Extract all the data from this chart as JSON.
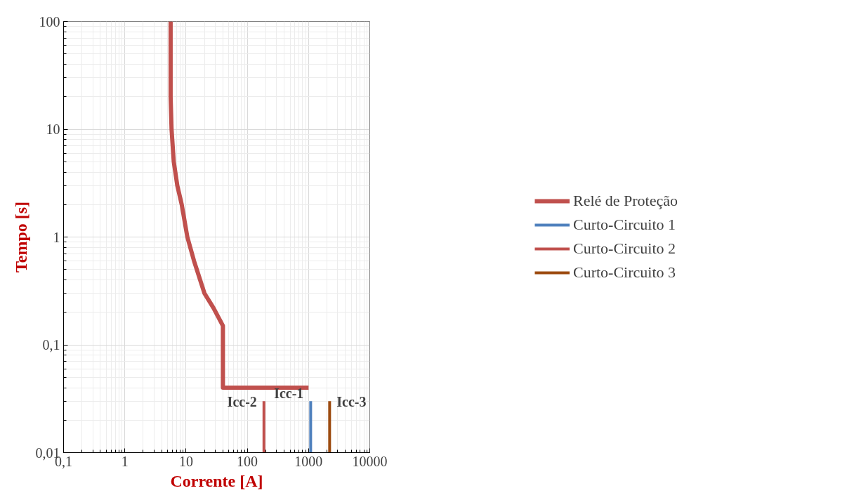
{
  "chart_data": {
    "type": "line",
    "xlabel": "Corrente [A]",
    "ylabel": "Tempo [s]",
    "log": "xy",
    "grid": true,
    "legend": "right",
    "xlim": [
      0.1,
      10000
    ],
    "ylim": [
      0.01,
      100
    ],
    "xticks": [
      {
        "value": 0.1,
        "label": "0,1"
      },
      1,
      10,
      100,
      1000,
      10000
    ],
    "yticks": [
      {
        "value": 0.01,
        "label": "0,01"
      },
      {
        "value": 0.1,
        "label": "0,1"
      },
      1,
      10,
      100
    ],
    "series": [
      {
        "name": "Relé de Proteção",
        "color": "#c0504d",
        "x": [
          5.6,
          5.6,
          5.8,
          6.3,
          7.2,
          8.5,
          10.5,
          13.5,
          20,
          28,
          40,
          40,
          1000
        ],
        "values": [
          100,
          20,
          10,
          5,
          3,
          2,
          1,
          0.6,
          0.3,
          0.22,
          0.15,
          0.04,
          0.04
        ]
      },
      {
        "name": "Curto-Circuito 1",
        "color": "#4f81bd",
        "x": [
          1084,
          1084
        ],
        "values": [
          0.01,
          0.03
        ]
      },
      {
        "name": "Curto-Circuito 2",
        "color": "#c0504d",
        "x": [
          187,
          187
        ],
        "values": [
          0.01,
          0.03
        ]
      },
      {
        "name": "Curto-Circuito 3",
        "color": "#9c4a0f",
        "x": [
          2210,
          2210
        ],
        "values": [
          0.01,
          0.03
        ]
      }
    ],
    "annotations": [
      {
        "text": "Icc-2",
        "x": 187,
        "y": 0.025
      },
      {
        "text": "Icc-1",
        "x": 1084,
        "y": 0.03
      },
      {
        "text": "Icc-3",
        "x": 2210,
        "y": 0.025
      }
    ]
  }
}
